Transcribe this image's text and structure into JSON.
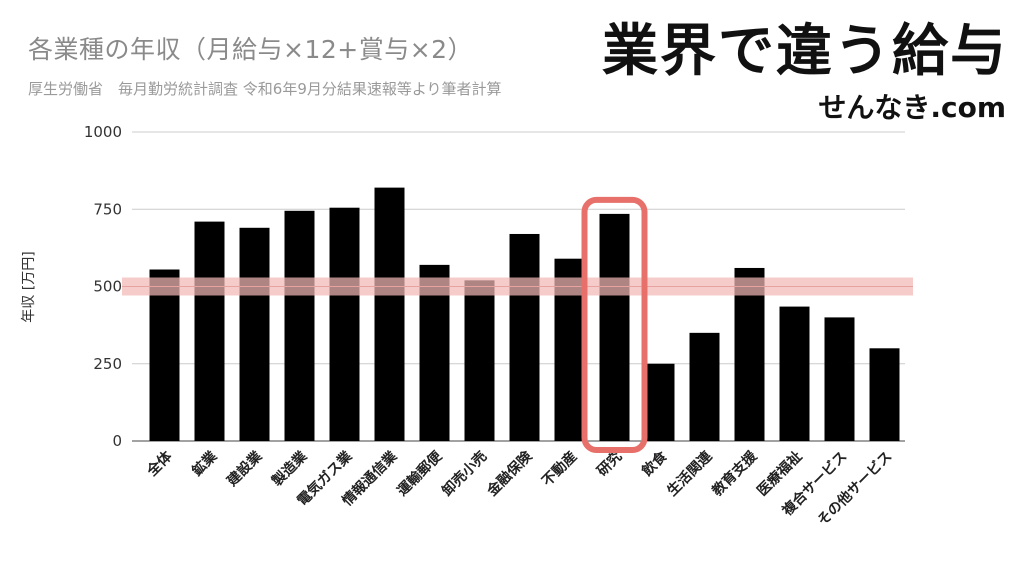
{
  "header": {
    "brand_title": "業界で違う給与",
    "brand_url": "せんなき.com"
  },
  "colors": {
    "bar": "#000000",
    "highlight_band": "#f2b8b5",
    "highlight_line": "#e6a3a0",
    "highlight_box": "#e8706a",
    "grid": "#cccccc"
  },
  "chart_data": {
    "type": "bar",
    "title": "各業種の年収（月給与×12+賞与×2）",
    "subtitle": "厚生労働省　毎月勤労統計調査 令和6年9月分結果速報等より筆者計算",
    "xlabel": "",
    "ylabel": "年収 [万円]",
    "ylim": [
      0,
      1000
    ],
    "yticks": [
      "0",
      "250",
      "500",
      "750",
      "1000"
    ],
    "grid": true,
    "legend": "none",
    "categories": [
      "全体",
      "鉱業",
      "建設業",
      "製造業",
      "電気ガス業",
      "情報通信業",
      "運輸郵便",
      "卸売小売",
      "金融保険",
      "不動産",
      "研究",
      "飲食",
      "生活関連",
      "教育支援",
      "医療福祉",
      "複合サービス",
      "その他サービス"
    ],
    "values": [
      555,
      710,
      690,
      745,
      755,
      820,
      570,
      520,
      670,
      590,
      735,
      250,
      350,
      560,
      435,
      400,
      300
    ],
    "reference_line": 500,
    "highlighted_category": "研究"
  }
}
